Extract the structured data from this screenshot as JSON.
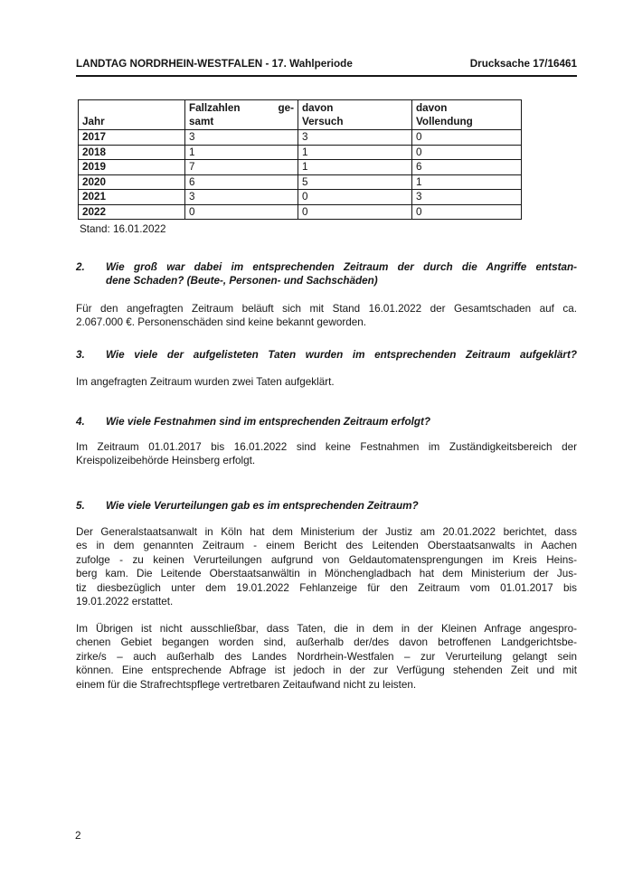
{
  "header": {
    "left": "LANDTAG NORDRHEIN-WESTFALEN - 17. Wahlperiode",
    "right": "Drucksache 17/16461"
  },
  "table": {
    "header": {
      "jahr": "Jahr",
      "gesamt_l1a": "Fallzahlen",
      "gesamt_l1b": "ge-",
      "gesamt_l2": "samt",
      "versuch_l1": "davon",
      "versuch_l2": "Versuch",
      "vollendung_l1": "davon",
      "vollendung_l2": "Vollendung"
    },
    "rows": [
      [
        "2017",
        "3",
        "3",
        "0"
      ],
      [
        "2018",
        "1",
        "1",
        "0"
      ],
      [
        "2019",
        "7",
        "1",
        "6"
      ],
      [
        "2020",
        "6",
        "5",
        "1"
      ],
      [
        "2021",
        "3",
        "0",
        "3"
      ],
      [
        "2022",
        "0",
        "0",
        "0"
      ]
    ],
    "caption": "Stand: 16.01.2022"
  },
  "sections": [
    {
      "id": "q2",
      "number": "2.",
      "heading": [
        "Wie groß war dabei im entsprechenden Zeitraum der durch die Angriffe entstan-",
        "dene Schaden? (Beute-, Personen- und Sachschäden)"
      ],
      "paragraphs": [
        [
          "Für den angefragten Zeitraum beläuft sich mit Stand 16.01.2022 der Gesamtschaden auf ca.",
          "2.067.000 €. Personenschäden sind keine bekannt geworden."
        ]
      ]
    },
    {
      "id": "q3",
      "number": "3.",
      "heading": [
        "Wie viele der aufgelisteten Taten wurden im entsprechenden Zeitraum aufgeklärt?"
      ],
      "paragraphs": [
        [
          "Im angefragten Zeitraum wurden zwei Taten aufgeklärt."
        ]
      ]
    },
    {
      "id": "q4",
      "number": "4.",
      "heading": [
        "Wie viele Festnahmen sind im entsprechenden Zeitraum erfolgt?"
      ],
      "paragraphs": [
        [
          "Im Zeitraum 01.01.2017 bis 16.01.2022 sind keine Festnahmen im Zuständigkeitsbereich der",
          "Kreispolizeibehörde Heinsberg erfolgt."
        ]
      ]
    },
    {
      "id": "q5",
      "number": "5.",
      "heading": [
        "Wie viele Verurteilungen gab es im entsprechenden Zeitraum?"
      ],
      "paragraphs": [
        [
          "Der Generalstaatsanwalt in Köln hat dem Ministerium der Justiz am 20.01.2022 berichtet, dass",
          "es in dem genannten Zeitraum - einem Bericht des Leitenden Oberstaatsanwalts in Aachen",
          "zufolge - zu keinen Verurteilungen aufgrund von Geldautomatensprengungen im Kreis Heins-",
          "berg kam. Die Leitende Oberstaatsanwältin in Mönchengladbach hat dem Ministerium der Jus-",
          "tiz diesbezüglich unter dem 19.01.2022 Fehlanzeige für den Zeitraum vom 01.01.2017 bis",
          "19.01.2022 erstattet."
        ],
        [
          "Im Übrigen ist nicht ausschließbar, dass Taten, die in dem in der Kleinen Anfrage angespro-",
          "chenen Gebiet begangen worden sind, außerhalb der/des davon betroffenen Landgerichtsbe-",
          "zirke/s – auch außerhalb des Landes Nordrhein-Westfalen – zur Verurteilung gelangt sein",
          "können. Eine entsprechende Abfrage ist jedoch in der zur Verfügung stehenden Zeit und mit",
          "einem für die Strafrechtspflege vertretbaren Zeitaufwand nicht zu leisten."
        ]
      ]
    }
  ],
  "page_number": "2"
}
